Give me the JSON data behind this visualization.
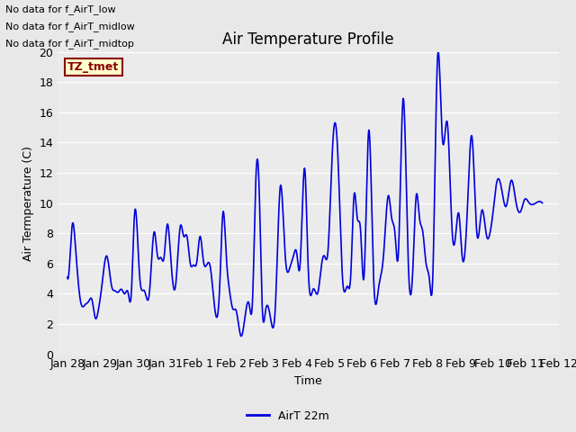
{
  "title": "Air Temperature Profile",
  "xlabel": "Time",
  "ylabel": "Air Termperature (C)",
  "ylim": [
    0,
    20
  ],
  "yticks": [
    0,
    2,
    4,
    6,
    8,
    10,
    12,
    14,
    16,
    18,
    20
  ],
  "line_color": "#0000dd",
  "line_width": 1.2,
  "legend_label": "AirT 22m",
  "background_color": "#e8e8e8",
  "plot_bg_color": "#ebebeb",
  "grid_color": "#ffffff",
  "annotations_outside": [
    "No data for f_AirT_low",
    "No data for f_AirT_midlow",
    "No data for f_AirT_midtop"
  ],
  "tz_label": "TZ_tmet",
  "x_days": [
    "Jan 28",
    "Jan 29",
    "Jan 30",
    "Jan 31",
    "Feb 1",
    "Feb 2",
    "Feb 3",
    "Feb 4",
    "Feb 5",
    "Feb 6",
    "Feb 7",
    "Feb 8",
    "Feb 9",
    "Feb 10",
    "Feb 11",
    "Feb 12"
  ],
  "control_x": [
    0.0,
    0.05,
    0.15,
    0.25,
    0.4,
    0.55,
    0.65,
    0.75,
    0.85,
    0.95,
    1.05,
    1.2,
    1.35,
    1.45,
    1.55,
    1.65,
    1.75,
    1.85,
    1.95,
    2.05,
    2.2,
    2.35,
    2.5,
    2.65,
    2.75,
    2.85,
    2.95,
    3.05,
    3.15,
    3.3,
    3.45,
    3.55,
    3.65,
    3.75,
    3.85,
    3.95,
    4.05,
    4.15,
    4.25,
    4.35,
    4.5,
    4.65,
    4.75,
    4.85,
    4.95,
    5.05,
    5.15,
    5.3,
    5.45,
    5.55,
    5.65,
    5.75,
    5.85,
    5.95,
    6.05,
    6.2,
    6.35,
    6.5,
    6.65,
    6.8,
    6.9,
    7.0,
    7.1,
    7.25,
    7.35,
    7.5,
    7.65,
    7.75,
    7.85,
    7.95,
    8.1,
    8.25,
    8.4,
    8.55,
    8.65,
    8.75,
    8.85,
    8.95,
    9.05,
    9.2,
    9.35,
    9.5,
    9.65,
    9.8,
    9.9,
    10.0,
    10.1,
    10.25,
    10.4,
    10.55,
    10.65,
    10.75,
    10.85,
    10.95,
    11.05,
    11.15,
    11.3,
    11.45,
    11.6,
    11.75,
    11.85,
    11.95,
    12.05,
    12.2,
    12.35,
    12.5,
    12.65,
    12.8,
    12.9,
    13.0,
    13.1,
    13.25,
    13.4,
    13.55,
    13.7,
    13.85,
    13.95,
    14.1,
    14.3,
    14.5
  ],
  "control_y": [
    5.1,
    5.5,
    8.6,
    7.0,
    3.5,
    3.3,
    3.5,
    3.6,
    2.4,
    3.0,
    4.5,
    6.5,
    4.5,
    4.2,
    4.1,
    4.3,
    4.0,
    4.1,
    4.0,
    9.3,
    5.3,
    4.2,
    4.0,
    8.1,
    6.5,
    6.4,
    6.4,
    8.6,
    6.5,
    4.5,
    8.5,
    7.8,
    7.8,
    6.0,
    5.9,
    6.1,
    7.8,
    6.2,
    5.9,
    5.9,
    3.0,
    4.5,
    9.4,
    6.5,
    4.2,
    3.0,
    2.9,
    1.2,
    2.9,
    3.3,
    3.5,
    11.4,
    11.2,
    3.0,
    2.9,
    2.4,
    3.2,
    11.1,
    6.5,
    5.8,
    6.5,
    6.7,
    5.8,
    12.2,
    5.8,
    4.3,
    4.1,
    5.8,
    6.5,
    6.7,
    13.9,
    13.5,
    5.0,
    4.5,
    5.2,
    10.5,
    9.0,
    8.2,
    5.0,
    14.8,
    5.0,
    4.4,
    6.5,
    10.5,
    9.0,
    8.0,
    6.5,
    16.9,
    6.5,
    5.8,
    10.5,
    9.0,
    8.1,
    6.0,
    5.0,
    4.8,
    19.6,
    14.2,
    15.3,
    8.0,
    7.8,
    9.3,
    6.5,
    9.1,
    14.4,
    8.0,
    9.5,
    7.8,
    8.0,
    9.5,
    11.3,
    11.0,
    9.8,
    11.5,
    10.0,
    9.5,
    10.2,
    10.0,
    10.0,
    10.0
  ]
}
